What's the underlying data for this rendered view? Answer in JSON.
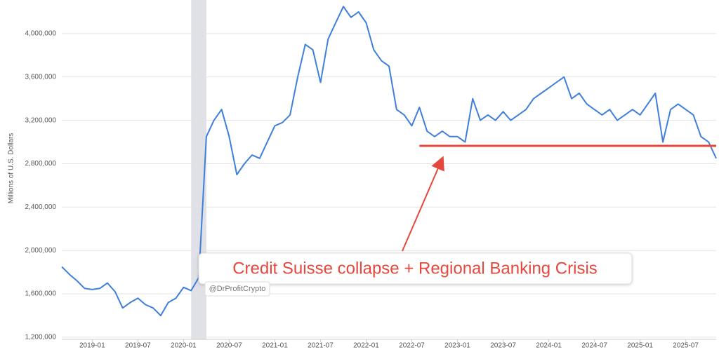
{
  "chart_data": {
    "type": "line",
    "y_label": "Millions of U.S. Dollars",
    "color": "#3f7fdc",
    "grid": true,
    "x": [
      "2018-09",
      "2018-10",
      "2018-11",
      "2018-12",
      "2019-01",
      "2019-02",
      "2019-03",
      "2019-04",
      "2019-05",
      "2019-06",
      "2019-07",
      "2019-08",
      "2019-09",
      "2019-10",
      "2019-11",
      "2019-12",
      "2020-01",
      "2020-02",
      "2020-03",
      "2020-04",
      "2020-05",
      "2020-06",
      "2020-07",
      "2020-08",
      "2020-09",
      "2020-10",
      "2020-11",
      "2020-12",
      "2021-01",
      "2021-02",
      "2021-03",
      "2021-04",
      "2021-05",
      "2021-06",
      "2021-07",
      "2021-08",
      "2021-09",
      "2021-10",
      "2021-11",
      "2021-12",
      "2022-01",
      "2022-02",
      "2022-03",
      "2022-04",
      "2022-05",
      "2022-06",
      "2022-07",
      "2022-08",
      "2022-09",
      "2022-10",
      "2022-11",
      "2022-12",
      "2023-01",
      "2023-02",
      "2023-03",
      "2023-04",
      "2023-05",
      "2023-06",
      "2023-07",
      "2023-08",
      "2023-09",
      "2023-10",
      "2023-11",
      "2023-12",
      "2024-01",
      "2024-02",
      "2024-03",
      "2024-04",
      "2024-05",
      "2024-06",
      "2024-07",
      "2024-08",
      "2024-09",
      "2024-10",
      "2024-11",
      "2024-12",
      "2025-01",
      "2025-02",
      "2025-03",
      "2025-04",
      "2025-05",
      "2025-06",
      "2025-07",
      "2025-08",
      "2025-09",
      "2025-10",
      "2025-11"
    ],
    "values": [
      1850000,
      1780000,
      1720000,
      1650000,
      1640000,
      1650000,
      1700000,
      1620000,
      1470000,
      1520000,
      1560000,
      1500000,
      1470000,
      1400000,
      1520000,
      1560000,
      1660000,
      1630000,
      1750000,
      3050000,
      3200000,
      3300000,
      3050000,
      2700000,
      2800000,
      2880000,
      2850000,
      3000000,
      3150000,
      3180000,
      3250000,
      3600000,
      3900000,
      3850000,
      3550000,
      3950000,
      4100000,
      4250000,
      4150000,
      4200000,
      4100000,
      3850000,
      3750000,
      3700000,
      3300000,
      3250000,
      3150000,
      3320000,
      3100000,
      3050000,
      3100000,
      3050000,
      3050000,
      3000000,
      3400000,
      3200000,
      3250000,
      3200000,
      3280000,
      3200000,
      3250000,
      3300000,
      3400000,
      3450000,
      3500000,
      3550000,
      3600000,
      3400000,
      3450000,
      3350000,
      3300000,
      3250000,
      3300000,
      3200000,
      3250000,
      3300000,
      3250000,
      3350000,
      3450000,
      3000000,
      3300000,
      3350000,
      3300000,
      3250000,
      3050000,
      3000000,
      2850000
    ],
    "xlim": [
      "2018-09",
      "2025-11"
    ],
    "xticks": [
      "2019-01",
      "2019-07",
      "2020-01",
      "2020-07",
      "2021-01",
      "2021-07",
      "2022-01",
      "2022-07",
      "2023-01",
      "2023-07",
      "2024-01",
      "2024-07",
      "2025-01",
      "2025-07"
    ],
    "ylim": [
      1180000,
      4310000
    ],
    "yticks": [
      {
        "value": 1200000,
        "label": "1,200,000"
      },
      {
        "value": 1600000,
        "label": "1,600,000"
      },
      {
        "value": 2000000,
        "label": "2,000,000"
      },
      {
        "value": 2400000,
        "label": "2,400,000"
      },
      {
        "value": 2800000,
        "label": "2,800,000"
      },
      {
        "value": 3200000,
        "label": "3,200,000"
      },
      {
        "value": 3600000,
        "label": "3,600,000"
      },
      {
        "value": 4000000,
        "label": "4,000,000"
      }
    ],
    "shaded_range": [
      "2020-02",
      "2020-04"
    ],
    "reference_line": {
      "value": 2965000,
      "from": "2022-08",
      "to": "2025-11",
      "color": "#e5473d"
    },
    "annotation": "Credit Suisse collapse + Regional Banking Crisis",
    "watermark": "@DrProfitCrypto"
  }
}
